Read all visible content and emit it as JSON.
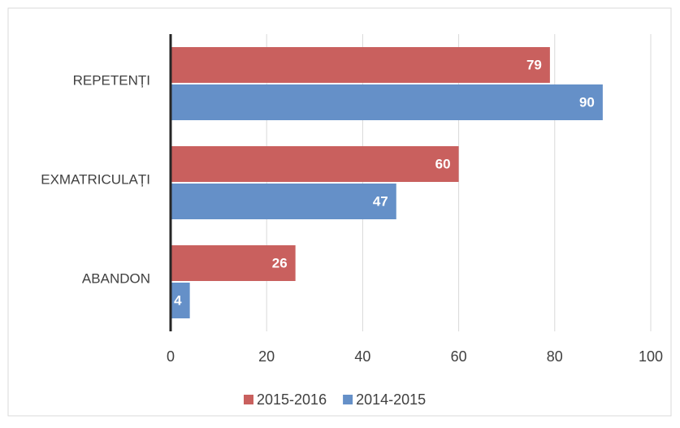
{
  "chart_data": {
    "type": "bar",
    "orientation": "horizontal",
    "categories": [
      "REPETENȚI",
      "EXMATRICULAȚI",
      "ABANDON"
    ],
    "series": [
      {
        "name": "2015-2016",
        "color": "#c9605e",
        "values": [
          79,
          60,
          26
        ]
      },
      {
        "name": "2014-2015",
        "color": "#6590c8",
        "values": [
          90,
          47,
          4
        ]
      }
    ],
    "xlim": [
      0,
      100
    ],
    "xticks": [
      0,
      20,
      40,
      60,
      80,
      100
    ],
    "grid": true,
    "legend": "bottom"
  }
}
